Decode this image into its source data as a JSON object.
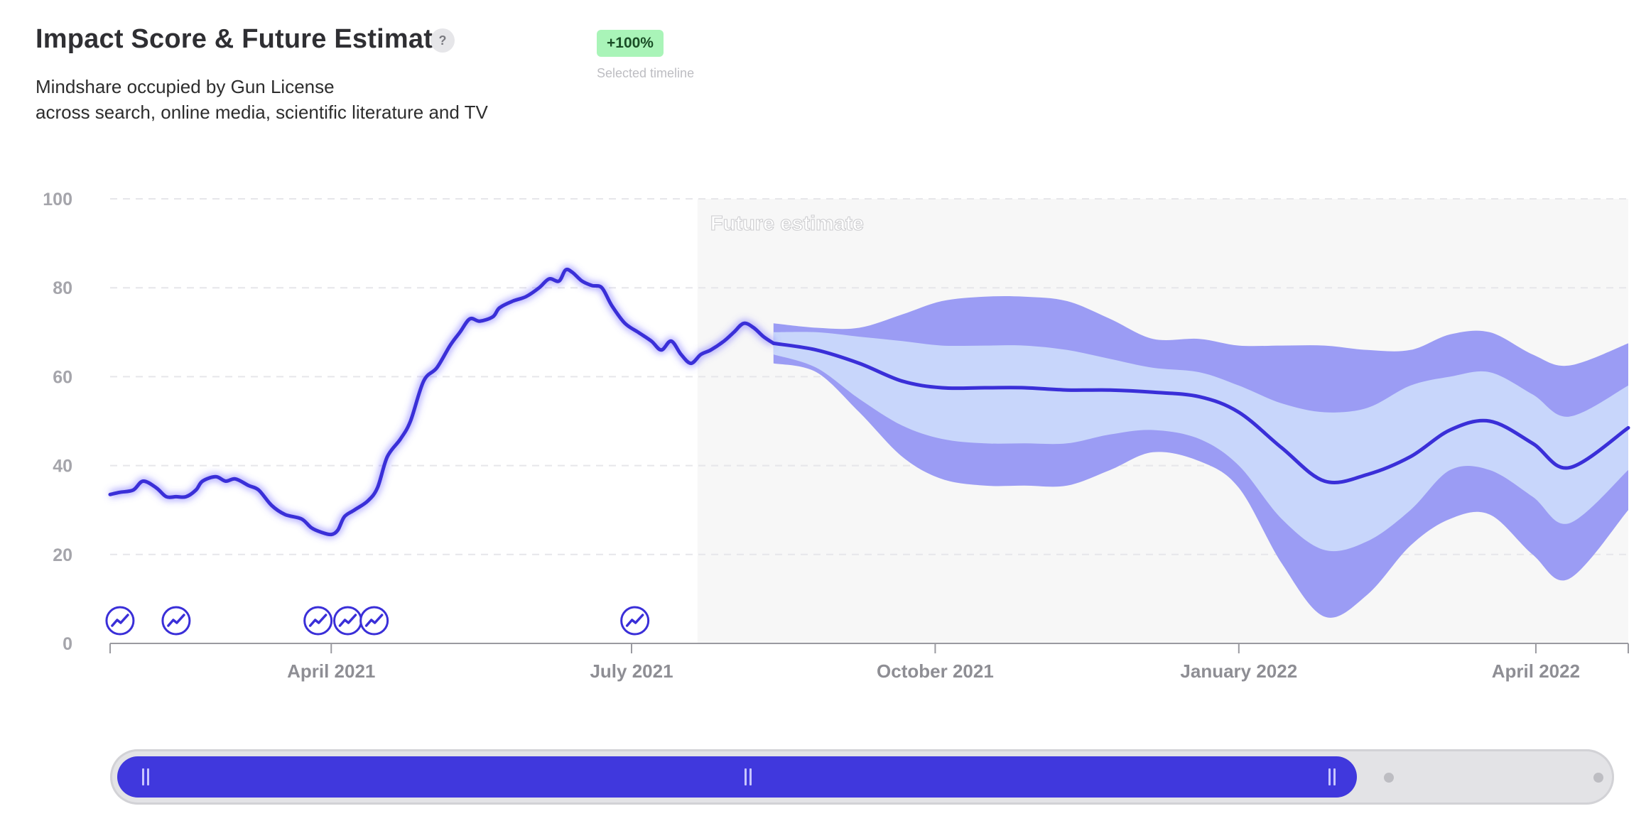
{
  "header": {
    "title": "Impact Score & Future Estimate",
    "help_icon": "question-icon",
    "subtitle_line1": "Mindshare occupied by Gun License",
    "subtitle_line2": "across search, online media, scientific literature and TV",
    "badge": "+100%",
    "badge_caption": "Selected timeline"
  },
  "colors": {
    "line": "#3a2fd8",
    "band_outer": "#9b9cf4",
    "band_inner": "#c8d6fb",
    "future_bg": "#f7f7f7",
    "badge_bg": "#a9f4b8"
  },
  "chart_data": {
    "type": "line",
    "title": "Impact Score & Future Estimate",
    "ylim": [
      0,
      100
    ],
    "xlim": [
      "2021-01-24",
      "2022-04-29"
    ],
    "y_ticks": [
      0,
      20,
      40,
      60,
      80,
      100
    ],
    "x_ticks": [
      {
        "label": "April 2021",
        "date": "2021-04-01"
      },
      {
        "label": "July 2021",
        "date": "2021-07-01"
      },
      {
        "label": "October 2021",
        "date": "2021-10-01"
      },
      {
        "label": "January 2022",
        "date": "2022-01-01"
      },
      {
        "label": "April 2022",
        "date": "2022-04-01"
      }
    ],
    "grid": "horizontal dashed",
    "future_region_label": "Future estimate",
    "future_start": "2021-07-21",
    "history": [
      [
        "2021-01-24",
        33.5
      ],
      [
        "2021-01-27",
        34
      ],
      [
        "2021-01-31",
        34.5
      ],
      [
        "2021-02-03",
        36.5
      ],
      [
        "2021-02-07",
        35
      ],
      [
        "2021-02-10",
        33
      ],
      [
        "2021-02-13",
        33
      ],
      [
        "2021-02-16",
        33
      ],
      [
        "2021-02-19",
        34.5
      ],
      [
        "2021-02-21",
        36.5
      ],
      [
        "2021-02-25",
        37.5
      ],
      [
        "2021-02-28",
        36.5
      ],
      [
        "2021-03-03",
        37
      ],
      [
        "2021-03-07",
        35.5
      ],
      [
        "2021-03-10",
        34.5
      ],
      [
        "2021-03-14",
        31
      ],
      [
        "2021-03-18",
        29
      ],
      [
        "2021-03-23",
        28
      ],
      [
        "2021-03-26",
        26
      ],
      [
        "2021-03-29",
        25
      ],
      [
        "2021-04-01",
        24.5
      ],
      [
        "2021-04-03",
        25.5
      ],
      [
        "2021-04-05",
        28.5
      ],
      [
        "2021-04-08",
        30
      ],
      [
        "2021-04-12",
        32
      ],
      [
        "2021-04-15",
        35
      ],
      [
        "2021-04-18",
        42
      ],
      [
        "2021-04-22",
        46
      ],
      [
        "2021-04-25",
        50
      ],
      [
        "2021-04-29",
        59
      ],
      [
        "2021-05-03",
        62
      ],
      [
        "2021-05-07",
        67
      ],
      [
        "2021-05-10",
        70
      ],
      [
        "2021-05-13",
        73
      ],
      [
        "2021-05-16",
        72.5
      ],
      [
        "2021-05-20",
        73.5
      ],
      [
        "2021-05-22",
        75.5
      ],
      [
        "2021-05-26",
        77
      ],
      [
        "2021-05-30",
        78
      ],
      [
        "2021-06-03",
        80
      ],
      [
        "2021-06-06",
        82
      ],
      [
        "2021-06-09",
        81.5
      ],
      [
        "2021-06-11",
        84
      ],
      [
        "2021-06-13",
        83.5
      ],
      [
        "2021-06-16",
        81.5
      ],
      [
        "2021-06-19",
        80.5
      ],
      [
        "2021-06-22",
        80
      ],
      [
        "2021-06-25",
        76
      ],
      [
        "2021-06-29",
        72
      ],
      [
        "2021-07-03",
        70
      ],
      [
        "2021-07-07",
        68
      ],
      [
        "2021-07-10",
        66
      ],
      [
        "2021-07-13",
        68
      ],
      [
        "2021-07-16",
        65
      ],
      [
        "2021-07-19",
        63
      ],
      [
        "2021-07-22",
        65
      ],
      [
        "2021-07-25",
        66
      ],
      [
        "2021-07-29",
        68
      ],
      [
        "2021-08-01",
        70
      ],
      [
        "2021-08-04",
        72
      ],
      [
        "2021-08-07",
        71
      ],
      [
        "2021-08-10",
        69
      ],
      [
        "2021-08-13",
        67.5
      ]
    ],
    "forecast": [
      {
        "date": "2021-08-13",
        "median": 67.5,
        "inner_low": 65,
        "inner_high": 70,
        "outer_low": 63,
        "outer_high": 72
      },
      {
        "date": "2021-08-26",
        "median": 66,
        "inner_low": 62,
        "inner_high": 70,
        "outer_low": 61,
        "outer_high": 71
      },
      {
        "date": "2021-09-08",
        "median": 63,
        "inner_low": 55,
        "inner_high": 69,
        "outer_low": 52,
        "outer_high": 71
      },
      {
        "date": "2021-09-21",
        "median": 59,
        "inner_low": 49,
        "inner_high": 68,
        "outer_low": 42,
        "outer_high": 74
      },
      {
        "date": "2021-10-03",
        "median": 57.5,
        "inner_low": 46,
        "inner_high": 67,
        "outer_low": 37,
        "outer_high": 77
      },
      {
        "date": "2021-10-16",
        "median": 57.5,
        "inner_low": 45,
        "inner_high": 67,
        "outer_low": 35.5,
        "outer_high": 78
      },
      {
        "date": "2021-10-28",
        "median": 57.5,
        "inner_low": 45,
        "inner_high": 67,
        "outer_low": 35.5,
        "outer_high": 78
      },
      {
        "date": "2021-11-10",
        "median": 57,
        "inner_low": 45,
        "inner_high": 66,
        "outer_low": 35.5,
        "outer_high": 77
      },
      {
        "date": "2021-11-23",
        "median": 57,
        "inner_low": 47,
        "inner_high": 64,
        "outer_low": 39,
        "outer_high": 73
      },
      {
        "date": "2021-12-06",
        "median": 56.5,
        "inner_low": 48,
        "inner_high": 62,
        "outer_low": 43,
        "outer_high": 68.5
      },
      {
        "date": "2021-12-20",
        "median": 55.5,
        "inner_low": 46,
        "inner_high": 61,
        "outer_low": 41,
        "outer_high": 68.5
      },
      {
        "date": "2022-01-01",
        "median": 52,
        "inner_low": 40,
        "inner_high": 58,
        "outer_low": 35,
        "outer_high": 67
      },
      {
        "date": "2022-01-14",
        "median": 44,
        "inner_low": 28,
        "inner_high": 54,
        "outer_low": 18,
        "outer_high": 67
      },
      {
        "date": "2022-01-27",
        "median": 36.5,
        "inner_low": 21,
        "inner_high": 52,
        "outer_low": 6,
        "outer_high": 67
      },
      {
        "date": "2022-02-09",
        "median": 38,
        "inner_low": 23,
        "inner_high": 53,
        "outer_low": 11,
        "outer_high": 66
      },
      {
        "date": "2022-02-22",
        "median": 42,
        "inner_low": 30,
        "inner_high": 58,
        "outer_low": 22,
        "outer_high": 66
      },
      {
        "date": "2022-03-06",
        "median": 48,
        "inner_low": 39,
        "inner_high": 60,
        "outer_low": 28,
        "outer_high": 69.5
      },
      {
        "date": "2022-03-18",
        "median": 50,
        "inner_low": 39,
        "inner_high": 61,
        "outer_low": 29,
        "outer_high": 70
      },
      {
        "date": "2022-03-31",
        "median": 45,
        "inner_low": 33,
        "inner_high": 56,
        "outer_low": 20,
        "outer_high": 65
      },
      {
        "date": "2022-04-11",
        "median": 39.5,
        "inner_low": 27,
        "inner_high": 51,
        "outer_low": 14.5,
        "outer_high": 62.5
      },
      {
        "date": "2022-04-29",
        "median": 48.5,
        "inner_low": 39,
        "inner_high": 58,
        "outer_low": 30,
        "outer_high": 67.5
      }
    ],
    "event_markers": [
      "2021-01-27",
      "2021-02-13",
      "2021-03-28",
      "2021-04-06",
      "2021-04-14",
      "2021-07-02"
    ],
    "event_marker_icon": "trend-up-icon"
  },
  "scrollbar": {
    "range_start": "2021-01-24",
    "range_end": "2022-04-29",
    "selected_fraction": 0.83
  }
}
